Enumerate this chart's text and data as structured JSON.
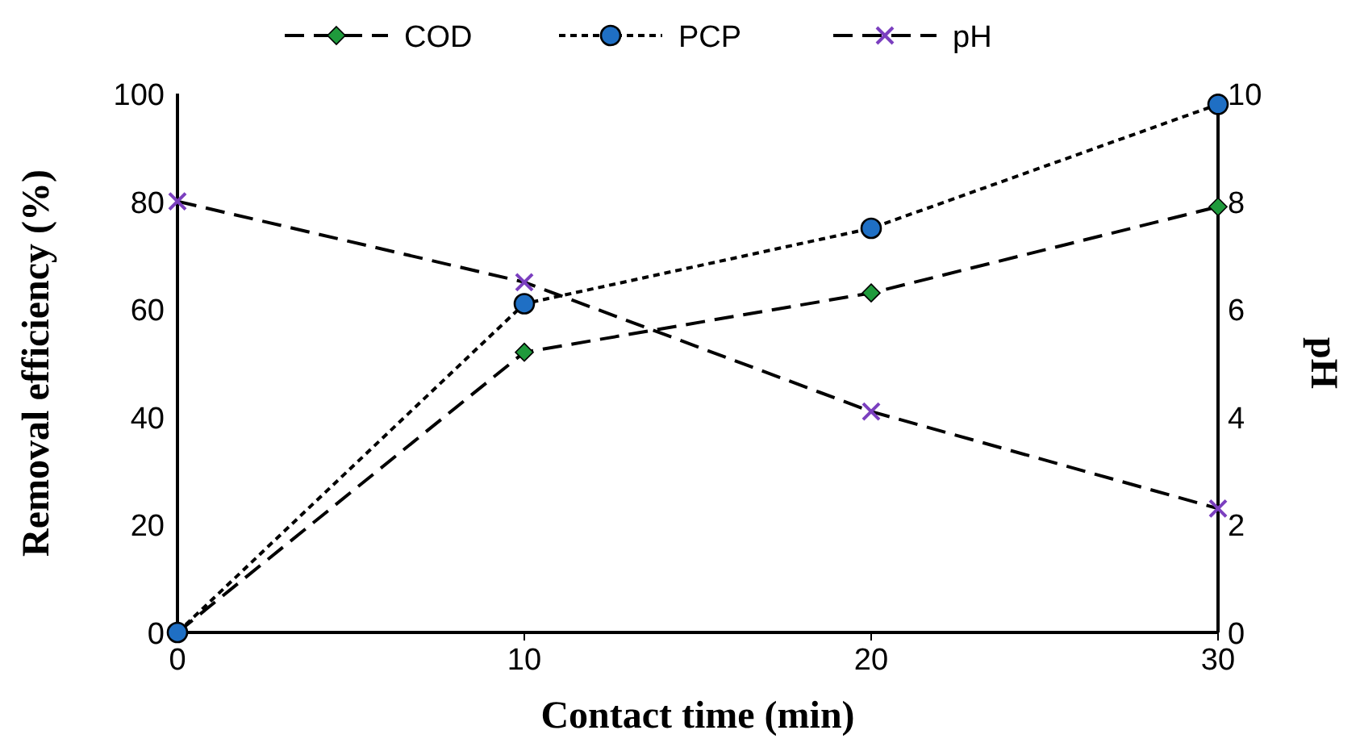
{
  "chart_data": {
    "type": "line",
    "xlabel": "Contact time (min)",
    "ylabel": "Removal efficiency (%)",
    "y2label": "pH",
    "x": [
      0,
      10,
      20,
      30
    ],
    "xlim": [
      0,
      30
    ],
    "xticks": [
      0,
      10,
      20,
      30
    ],
    "ylim": [
      0,
      100
    ],
    "yticks": [
      0,
      20,
      40,
      60,
      80,
      100
    ],
    "y2lim": [
      0,
      10
    ],
    "y2ticks": [
      0,
      2,
      4,
      6,
      8,
      10
    ],
    "legend": "top",
    "grid": false,
    "series": [
      {
        "name": "COD",
        "color": "#1f9a3c",
        "values": [
          0,
          52,
          63,
          79
        ],
        "marker": "diamond",
        "line_style": "dashed"
      },
      {
        "name": "PCP",
        "color": "#1f6fc4",
        "values": [
          0,
          61,
          75,
          98
        ],
        "marker": "circle",
        "line_style": "dotted"
      },
      {
        "name": "pH",
        "color": "#7b3fbf",
        "values": [
          8.0,
          6.5,
          4.1,
          2.3
        ],
        "marker": "cross",
        "line_style": "dashed",
        "axis": "y2"
      }
    ]
  }
}
